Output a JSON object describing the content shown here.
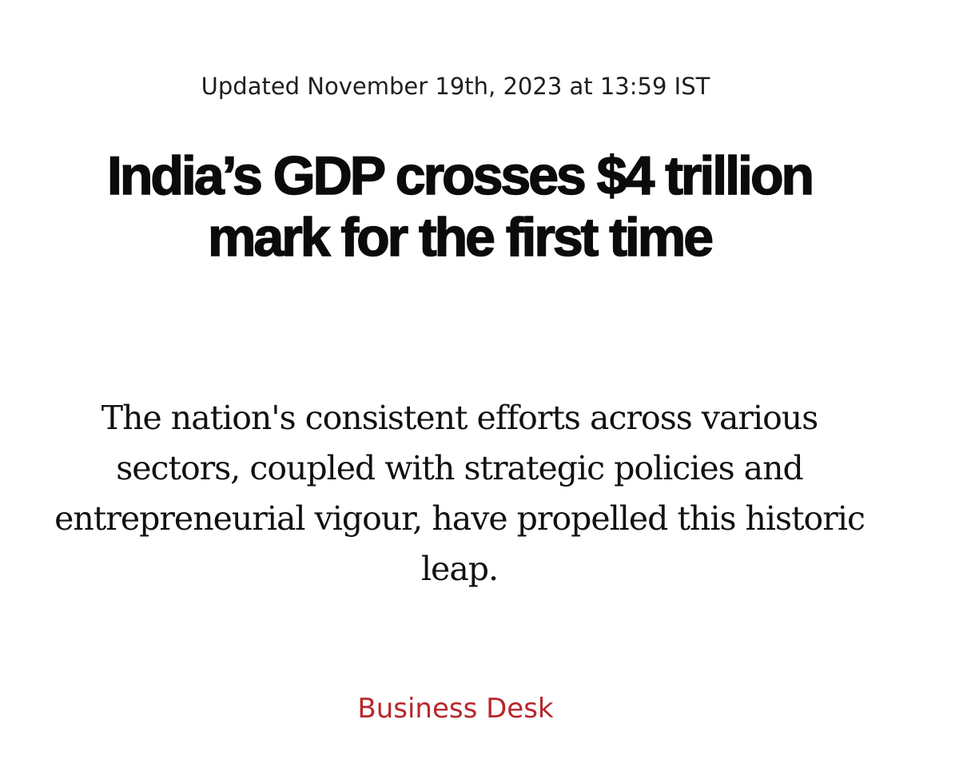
{
  "article": {
    "updated": "Updated November 19th, 2023 at 13:59 IST",
    "headline": "India’s GDP crosses $4 trillion mark for the first time",
    "standfirst": "The nation's consistent efforts across various sectors, coupled with strategic policies and entrepreneurial vigour, have propelled this historic leap.",
    "section": "Business Desk"
  },
  "colors": {
    "background": "#ffffff",
    "headline": "#0b0b0b",
    "body_text": "#111111",
    "section_accent": "#b6282c"
  }
}
